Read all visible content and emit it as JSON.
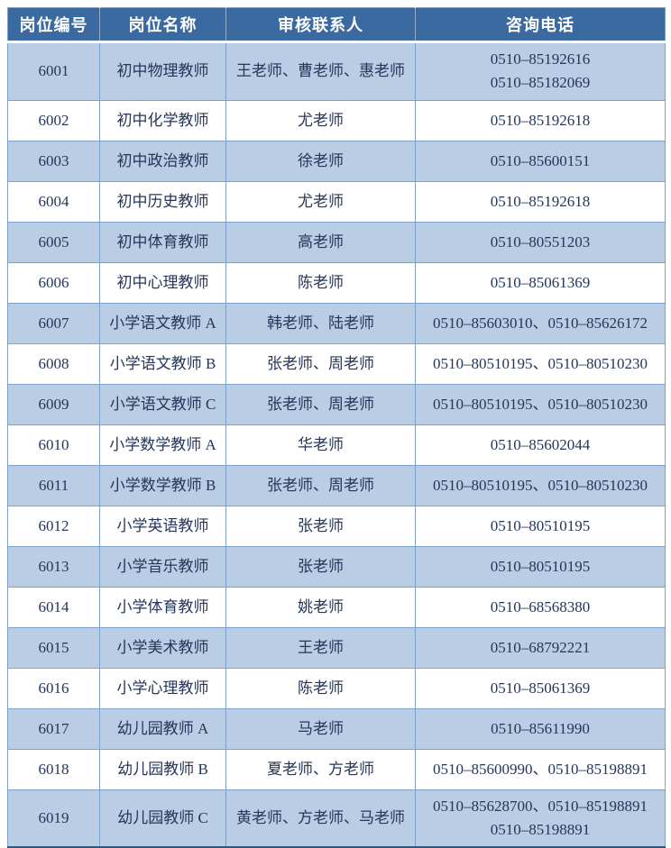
{
  "table": {
    "headers": [
      "岗位编号",
      "岗位名称",
      "审核联系人",
      "咨询电话"
    ],
    "rows": [
      {
        "id": "6001",
        "name": "初中物理教师",
        "contacts": "王老师、曹老师、惠老师",
        "phone": "0510–85192616\n0510–85182069"
      },
      {
        "id": "6002",
        "name": "初中化学教师",
        "contacts": "尤老师",
        "phone": "0510–85192618"
      },
      {
        "id": "6003",
        "name": "初中政治教师",
        "contacts": "徐老师",
        "phone": "0510–85600151"
      },
      {
        "id": "6004",
        "name": "初中历史教师",
        "contacts": "尤老师",
        "phone": "0510–85192618"
      },
      {
        "id": "6005",
        "name": "初中体育教师",
        "contacts": "高老师",
        "phone": "0510–80551203"
      },
      {
        "id": "6006",
        "name": "初中心理教师",
        "contacts": "陈老师",
        "phone": "0510–85061369"
      },
      {
        "id": "6007",
        "name": "小学语文教师 A",
        "contacts": "韩老师、陆老师",
        "phone": "0510–85603010、0510–85626172"
      },
      {
        "id": "6008",
        "name": "小学语文教师 B",
        "contacts": "张老师、周老师",
        "phone": "0510–80510195、0510–80510230"
      },
      {
        "id": "6009",
        "name": "小学语文教师 C",
        "contacts": "张老师、周老师",
        "phone": "0510–80510195、0510–80510230"
      },
      {
        "id": "6010",
        "name": "小学数学教师 A",
        "contacts": "华老师",
        "phone": "0510–85602044"
      },
      {
        "id": "6011",
        "name": "小学数学教师 B",
        "contacts": "张老师、周老师",
        "phone": "0510–80510195、0510–80510230"
      },
      {
        "id": "6012",
        "name": "小学英语教师",
        "contacts": "张老师",
        "phone": "0510–80510195"
      },
      {
        "id": "6013",
        "name": "小学音乐教师",
        "contacts": "张老师",
        "phone": "0510–80510195"
      },
      {
        "id": "6014",
        "name": "小学体育教师",
        "contacts": "姚老师",
        "phone": "0510–68568380"
      },
      {
        "id": "6015",
        "name": "小学美术教师",
        "contacts": "王老师",
        "phone": "0510–68792221"
      },
      {
        "id": "6016",
        "name": "小学心理教师",
        "contacts": "陈老师",
        "phone": "0510–85061369"
      },
      {
        "id": "6017",
        "name": "幼儿园教师 A",
        "contacts": "马老师",
        "phone": "0510–85611990"
      },
      {
        "id": "6018",
        "name": "幼儿园教师 B",
        "contacts": "夏老师、方老师",
        "phone": "0510–85600990、0510–85198891"
      },
      {
        "id": "6019",
        "name": "幼儿园教师 C",
        "contacts": "黄老师、方老师、马老师",
        "phone": "0510–85628700、0510–85198891\n0510–85198891"
      }
    ]
  },
  "colors": {
    "header_bg": "#3B6AA0",
    "header_text": "#FFFFFF",
    "row_alt_bg": "#B9CDE4",
    "row_bg": "#FFFFFF",
    "border": "#7FA0C8",
    "outer_border": "#2E5984",
    "text": "#24365A"
  }
}
